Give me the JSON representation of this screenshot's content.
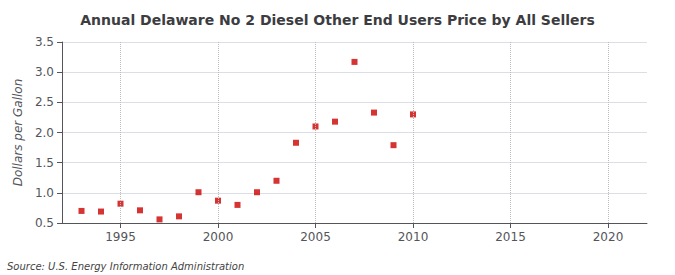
{
  "chart_data": {
    "type": "scatter",
    "title": "Annual Delaware No 2 Diesel Other End Users Price by All Sellers",
    "ylabel": "Dollars per Gallon",
    "annotation": "Source: U.S. Energy Information Administration",
    "x": [
      1993,
      1994,
      1995,
      1996,
      1997,
      1998,
      1999,
      2000,
      2001,
      2002,
      2003,
      2004,
      2005,
      2006,
      2007,
      2008,
      2009,
      2010
    ],
    "values": [
      0.7,
      0.69,
      0.82,
      0.71,
      0.56,
      0.61,
      1.01,
      0.87,
      0.8,
      1.01,
      1.2,
      1.83,
      2.1,
      2.18,
      3.17,
      2.33,
      1.79,
      2.3
    ],
    "color": "#cc0000",
    "marker": "square",
    "xlim": [
      1992,
      2022
    ],
    "ylim": [
      0.5,
      3.5
    ],
    "xticks": [
      1995,
      2000,
      2005,
      2010,
      2015,
      2020
    ],
    "yticks": [
      0.5,
      {
        "value": 1,
        "label": "1.0"
      },
      1.5,
      {
        "value": 2,
        "label": "2.0"
      },
      2.5,
      {
        "value": 3,
        "label": "3.0"
      },
      3.5
    ],
    "grid": true
  }
}
